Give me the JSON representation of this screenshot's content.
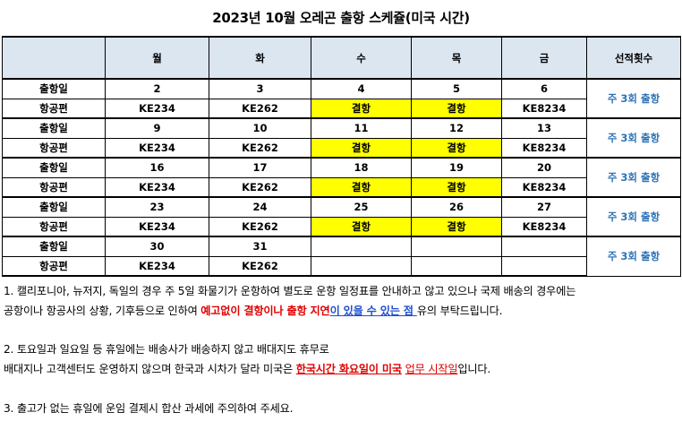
{
  "title": "2023년 10월 오레곤 출항 스케쥴(미국 시간)",
  "table": {
    "headers": [
      "",
      "월",
      "화",
      "수",
      "목",
      "금",
      "선적횟수"
    ],
    "row_labels": {
      "date": "출항일",
      "flight": "항공편"
    },
    "weeks": [
      {
        "dates": [
          "2",
          "3",
          "4",
          "5",
          "6"
        ],
        "flights": [
          "KE234",
          "KE262",
          "결항",
          "결항",
          "KE8234"
        ],
        "count": "주 3회 출항"
      },
      {
        "dates": [
          "9",
          "10",
          "11",
          "12",
          "13"
        ],
        "flights": [
          "KE234",
          "KE262",
          "결항",
          "결항",
          "KE8234"
        ],
        "count": "주 3회 출항"
      },
      {
        "dates": [
          "16",
          "17",
          "18",
          "19",
          "20"
        ],
        "flights": [
          "KE234",
          "KE262",
          "결항",
          "결항",
          "KE8234"
        ],
        "count": "주 3회 출항"
      },
      {
        "dates": [
          "23",
          "24",
          "25",
          "26",
          "27"
        ],
        "flights": [
          "KE234",
          "KE262",
          "결항",
          "결항",
          "KE8234"
        ],
        "count": "주 3회 출항"
      },
      {
        "dates": [
          "30",
          "31",
          "",
          "",
          ""
        ],
        "flights": [
          "KE234",
          "KE262",
          "",
          "",
          ""
        ],
        "count": "주 3회 출항"
      }
    ],
    "highlight_color": "#ffff00",
    "count_color": "#2e74b5"
  },
  "notes": {
    "n1_a": "1. 캘리포니아, 뉴저지, 독일의 경우 주 5일 화물기가 운항하여 별도로 운항 일정표를 안내하고 않고 있으나 국제 배송의 경우에는",
    "n1_b": "공항이나 항공사의 상황, 기후등으로 인하여 ",
    "n1_red": "예고없이 결항이나 출항 지연",
    "n1_blue": "이 있을 수 있는 점 ",
    "n1_c": "유의 부탁드립니다.",
    "n2_a": "2. 토요일과 일요일 등 휴일에는 배송사가 배송하지 않고 배대지도 휴무로",
    "n2_b": "배대지나 고객센터도 운영하지 않으며 한국과 시차가 달라 미국은 ",
    "n2_red": "한국시간 화요일이 미국",
    "n2_c": " ",
    "n2_red2": "업무 시작일",
    "n2_d": "입니다.",
    "n3": "3. 출고가 없는 휴일에 운임 결제시 합산 과세에 주의하여 주세요."
  }
}
